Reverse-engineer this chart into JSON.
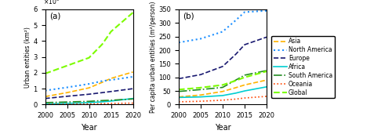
{
  "years": [
    2000,
    2005,
    2010,
    2013,
    2015,
    2020
  ],
  "panel_a": {
    "title": "(a)",
    "ylabel": "Urban entities (km²)",
    "ylim": [
      0,
      600000
    ],
    "yticks": [
      0,
      100000,
      200000,
      300000,
      400000,
      500000,
      600000
    ],
    "series": {
      "Asia": {
        "values": [
          50000,
          75000,
          105000,
          140000,
          165000,
          205000
        ],
        "color": "#FFB300",
        "ls": "--",
        "lw": 1.2
      },
      "North America": {
        "values": [
          88000,
          108000,
          130000,
          148000,
          155000,
          175000
        ],
        "color": "#1E90FF",
        "ls": ":",
        "lw": 1.5
      },
      "Europe": {
        "values": [
          38000,
          52000,
          65000,
          75000,
          82000,
          100000
        ],
        "color": "#191970",
        "ls": "--",
        "lw": 1.2
      },
      "Africa": {
        "values": [
          4000,
          7000,
          12000,
          17000,
          22000,
          38000
        ],
        "color": "#00CED1",
        "ls": "-",
        "lw": 1.2
      },
      "South America": {
        "values": [
          12000,
          16000,
          20000,
          25000,
          27000,
          35000
        ],
        "color": "#228B22",
        "ls": "-.",
        "lw": 1.2
      },
      "Oceania": {
        "values": [
          1500,
          2500,
          4000,
          5500,
          6500,
          9000
        ],
        "color": "#FF4500",
        "ls": ":",
        "lw": 1.2
      },
      "Global": {
        "values": [
          195000,
          245000,
          295000,
          380000,
          460000,
          580000
        ],
        "color": "#7CFC00",
        "ls": "--",
        "lw": 1.8
      }
    }
  },
  "panel_b": {
    "title": "(b)",
    "ylabel": "Per capita urban entities (m²/person)",
    "ylim": [
      0,
      350
    ],
    "yticks": [
      0,
      50,
      100,
      150,
      200,
      250,
      300,
      350
    ],
    "series": {
      "Asia": {
        "values": [
          28,
          35,
          48,
          62,
          72,
          90
        ],
        "color": "#FFB300",
        "ls": "--",
        "lw": 1.2
      },
      "North America": {
        "values": [
          228,
          242,
          268,
          310,
          340,
          345
        ],
        "color": "#1E90FF",
        "ls": ":",
        "lw": 1.5
      },
      "Europe": {
        "values": [
          95,
          110,
          140,
          185,
          220,
          248
        ],
        "color": "#191970",
        "ls": "--",
        "lw": 1.2
      },
      "Africa": {
        "values": [
          26,
          28,
          33,
          42,
          50,
          65
        ],
        "color": "#00CED1",
        "ls": "-",
        "lw": 1.2
      },
      "South America": {
        "values": [
          48,
          55,
          63,
          90,
          108,
          125
        ],
        "color": "#228B22",
        "ls": "-.",
        "lw": 1.2
      },
      "Oceania": {
        "values": [
          10,
          12,
          16,
          20,
          24,
          30
        ],
        "color": "#FF4500",
        "ls": ":",
        "lw": 1.2
      },
      "Global": {
        "values": [
          55,
          62,
          72,
          88,
          100,
          122
        ],
        "color": "#7CFC00",
        "ls": "--",
        "lw": 1.5
      }
    }
  },
  "legend_order": [
    "Asia",
    "North America",
    "Europe",
    "Africa",
    "South America",
    "Oceania",
    "Global"
  ],
  "legend_styles": {
    "Asia": {
      "color": "#FFB300",
      "ls": "--",
      "lw": 1.2
    },
    "North America": {
      "color": "#1E90FF",
      "ls": ":",
      "lw": 1.5
    },
    "Europe": {
      "color": "#191970",
      "ls": "--",
      "lw": 1.2
    },
    "Africa": {
      "color": "#00CED1",
      "ls": "-",
      "lw": 1.2
    },
    "South America": {
      "color": "#228B22",
      "ls": "-.",
      "lw": 1.2
    },
    "Oceania": {
      "color": "#FF4500",
      "ls": ":",
      "lw": 1.2
    },
    "Global": {
      "color": "#7CFC00",
      "ls": "--",
      "lw": 1.5
    }
  }
}
